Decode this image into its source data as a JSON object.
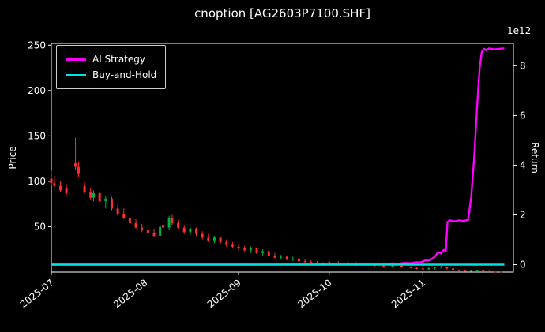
{
  "chart_data": {
    "type": "candlestick+line",
    "title": "cnoption [AG2603P7100.SHF]",
    "ylabel_left": "Price",
    "ylabel_right": "Return",
    "right_axis_offset_label": "1e12",
    "grid": false,
    "legend_position": "upper-left",
    "xlim": [
      0,
      153
    ],
    "left_ylim": [
      0,
      252
    ],
    "right_ylim": [
      -0.3,
      8.9
    ],
    "left_ticks": [
      50,
      100,
      150,
      200,
      250
    ],
    "right_ticks": [
      0,
      2,
      4,
      6,
      8
    ],
    "x_ticks": [
      {
        "label": "2025-07",
        "day": 0
      },
      {
        "label": "2025-08",
        "day": 31
      },
      {
        "label": "2025-09",
        "day": 62
      },
      {
        "label": "2025-10",
        "day": 92
      },
      {
        "label": "2025-11",
        "day": 123
      }
    ],
    "colors": {
      "background": "#000000",
      "text": "#ffffff",
      "spine": "#ffffff",
      "candle_up": "#00b140",
      "candle_down": "#ff2e2e",
      "ai_strategy": "#ff00ff",
      "buy_and_hold": "#00e1e1"
    },
    "candles": [
      [
        0,
        103,
        112,
        96,
        98
      ],
      [
        1,
        98,
        106,
        93,
        95
      ],
      [
        3,
        95,
        100,
        88,
        90
      ],
      [
        5,
        92,
        97,
        85,
        87
      ],
      [
        8,
        120,
        148,
        112,
        116
      ],
      [
        9,
        116,
        122,
        105,
        108
      ],
      [
        11,
        95,
        99,
        86,
        88
      ],
      [
        13,
        88,
        93,
        80,
        82
      ],
      [
        14,
        82,
        90,
        78,
        87
      ],
      [
        16,
        87,
        89,
        76,
        78
      ],
      [
        18,
        78,
        84,
        70,
        81
      ],
      [
        20,
        81,
        83,
        68,
        70
      ],
      [
        22,
        70,
        75,
        62,
        64
      ],
      [
        24,
        64,
        70,
        58,
        60
      ],
      [
        26,
        60,
        64,
        52,
        54
      ],
      [
        28,
        54,
        58,
        47,
        49
      ],
      [
        30,
        49,
        53,
        44,
        46
      ],
      [
        32,
        46,
        50,
        41,
        43
      ],
      [
        34,
        43,
        47,
        38,
        40
      ],
      [
        36,
        40,
        52,
        38,
        50
      ],
      [
        37,
        52,
        68,
        47,
        49
      ],
      [
        39,
        49,
        62,
        46,
        60
      ],
      [
        40,
        60,
        63,
        52,
        54
      ],
      [
        42,
        54,
        57,
        47,
        49
      ],
      [
        44,
        49,
        52,
        42,
        44
      ],
      [
        46,
        44,
        50,
        41,
        48
      ],
      [
        48,
        48,
        49,
        40,
        42
      ],
      [
        50,
        42,
        45,
        36,
        38
      ],
      [
        52,
        38,
        42,
        33,
        35
      ],
      [
        54,
        35,
        40,
        32,
        38
      ],
      [
        56,
        38,
        39,
        31,
        33
      ],
      [
        58,
        33,
        36,
        28,
        30
      ],
      [
        60,
        30,
        33,
        26,
        28
      ],
      [
        62,
        28,
        31,
        24,
        26
      ],
      [
        64,
        26,
        29,
        22,
        24
      ],
      [
        66,
        24,
        28,
        21,
        26
      ],
      [
        68,
        26,
        27,
        20,
        21
      ],
      [
        70,
        21,
        25,
        18,
        23
      ],
      [
        72,
        23,
        24,
        17,
        18
      ],
      [
        74,
        18,
        21,
        15,
        16
      ],
      [
        76,
        16,
        19,
        14,
        17
      ],
      [
        78,
        17,
        18,
        13,
        14
      ],
      [
        80,
        14,
        17,
        12,
        15
      ],
      [
        82,
        15,
        16,
        11,
        12
      ],
      [
        84,
        12,
        14,
        10,
        11
      ],
      [
        86,
        11,
        13,
        9,
        10
      ],
      [
        88,
        10,
        12,
        8,
        9
      ],
      [
        90,
        9,
        11,
        7,
        8
      ],
      [
        92,
        11,
        13,
        9,
        10
      ],
      [
        95,
        10,
        12,
        8,
        9
      ],
      [
        98,
        9,
        11,
        8,
        10
      ],
      [
        101,
        10,
        11,
        7,
        8
      ],
      [
        104,
        8,
        10,
        7,
        9
      ],
      [
        107,
        9,
        9.5,
        6,
        7
      ],
      [
        110,
        7,
        8,
        5,
        6
      ],
      [
        113,
        6,
        8,
        5,
        7
      ],
      [
        116,
        7,
        7.5,
        5,
        5.5
      ],
      [
        119,
        5.5,
        6.5,
        4,
        4.5
      ],
      [
        121,
        4.5,
        5.5,
        3,
        4
      ],
      [
        123,
        4,
        5,
        2.5,
        3
      ],
      [
        125,
        3,
        5,
        2,
        4.5
      ],
      [
        127,
        4.5,
        6,
        3,
        5.5
      ],
      [
        129,
        5.5,
        7,
        4,
        6
      ],
      [
        131,
        6,
        6.5,
        3,
        4
      ],
      [
        133,
        4,
        4.5,
        1.5,
        2
      ],
      [
        135,
        2,
        3,
        1,
        1.5
      ],
      [
        137,
        1.5,
        2.5,
        0.8,
        1
      ],
      [
        139,
        1,
        2,
        0.7,
        1.2
      ],
      [
        141,
        1.2,
        2,
        0.8,
        1.8
      ],
      [
        143,
        1.8,
        2,
        0.8,
        1
      ],
      [
        145,
        1,
        1.5,
        0.5,
        0.6
      ],
      [
        147,
        0.6,
        1,
        0.4,
        0.5
      ],
      [
        149,
        0.5,
        0.8,
        0.3,
        0.4
      ]
    ],
    "series": [
      {
        "name": "AI Strategy",
        "axis": "right",
        "color_key": "ai_strategy",
        "points": [
          [
            0,
            0
          ],
          [
            60,
            0
          ],
          [
            95,
            0.01
          ],
          [
            105,
            0.02
          ],
          [
            110,
            0.03
          ],
          [
            113,
            0.05
          ],
          [
            115,
            0.04
          ],
          [
            117,
            0.07
          ],
          [
            119,
            0.06
          ],
          [
            121,
            0.1
          ],
          [
            122,
            0.09
          ],
          [
            123,
            0.13
          ],
          [
            124,
            0.18
          ],
          [
            125,
            0.16
          ],
          [
            126,
            0.24
          ],
          [
            127,
            0.32
          ],
          [
            128,
            0.5
          ],
          [
            129,
            0.45
          ],
          [
            130,
            0.6
          ],
          [
            130.6,
            0.55
          ],
          [
            131.2,
            1.72
          ],
          [
            132,
            1.78
          ],
          [
            133.5,
            1.74
          ],
          [
            135,
            1.78
          ],
          [
            136.5,
            1.76
          ],
          [
            138,
            1.8
          ],
          [
            139,
            2.7
          ],
          [
            140,
            4.3
          ],
          [
            141,
            6.4
          ],
          [
            141.8,
            7.9
          ],
          [
            142.5,
            8.55
          ],
          [
            143.2,
            8.68
          ],
          [
            144,
            8.62
          ],
          [
            145,
            8.7
          ],
          [
            146.5,
            8.66
          ],
          [
            150,
            8.7
          ]
        ]
      },
      {
        "name": "Buy-and-Hold",
        "axis": "right",
        "color_key": "buy_and_hold",
        "points": [
          [
            0,
            0
          ],
          [
            150,
            0
          ]
        ]
      }
    ]
  }
}
